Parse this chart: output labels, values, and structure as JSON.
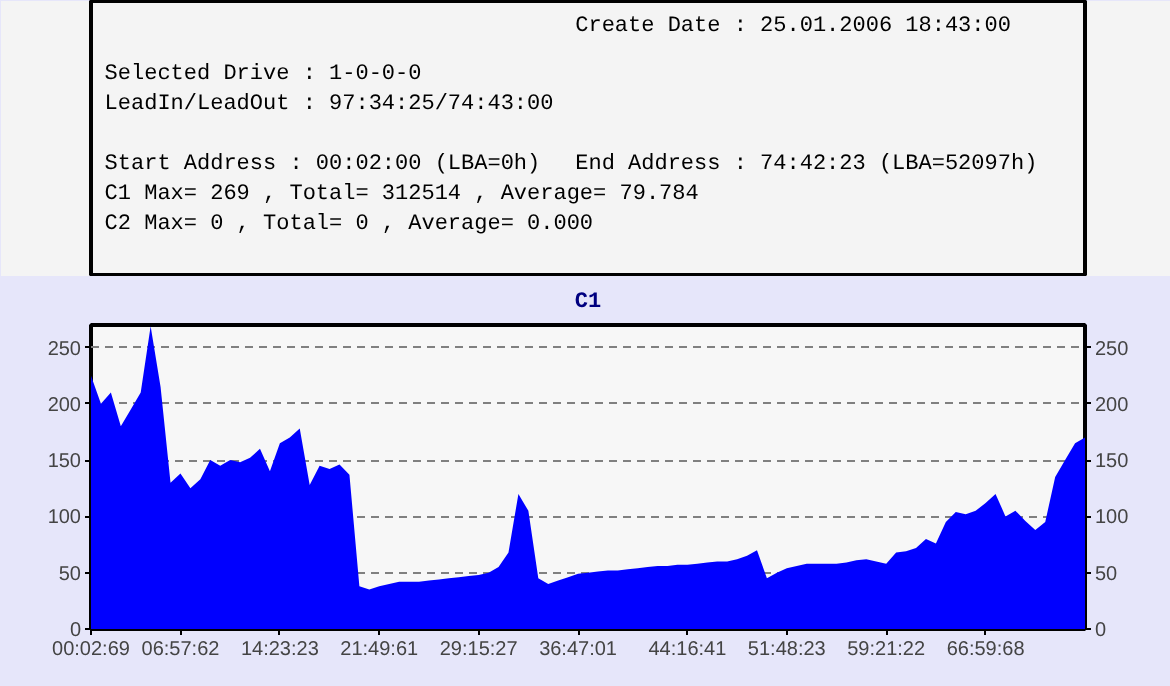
{
  "chart_data": {
    "type": "area",
    "title": "C1",
    "annotations": [
      "Create Date    : 25.01.2006 18:43:00",
      "Selected Drive : 1-0-0-0",
      "LeadIn/LeadOut : 97:34:25/74:43:00",
      "Start Address  : 00:02:00 (LBA=0h)",
      "End Address    : 74:42:23 (LBA=52097h)",
      "C1 Max= 269 , Total= 312514 , Average= 79.784",
      "C2 Max= 0 , Total= 0 , Average= 0.000"
    ],
    "categories": [
      "00:02:69",
      null,
      null,
      null,
      null,
      null,
      null,
      null,
      null,
      "06:57:62",
      null,
      null,
      null,
      null,
      null,
      null,
      null,
      null,
      null,
      "14:23:23",
      null,
      null,
      null,
      null,
      null,
      null,
      null,
      null,
      null,
      "21:49:61",
      null,
      null,
      null,
      null,
      null,
      null,
      null,
      null,
      null,
      "29:15:27",
      null,
      null,
      null,
      null,
      null,
      null,
      null,
      null,
      null,
      "36:47:01",
      null,
      null,
      null,
      null,
      null,
      null,
      null,
      null,
      null,
      null,
      "44:16:41",
      null,
      null,
      null,
      null,
      null,
      null,
      null,
      null,
      null,
      "51:48:23",
      null,
      null,
      null,
      null,
      null,
      null,
      null,
      null,
      null,
      "59:21:22",
      null,
      null,
      null,
      null,
      null,
      null,
      null,
      null,
      null,
      "66:59:68",
      null,
      null,
      null,
      null,
      null,
      null,
      null,
      null,
      null,
      null
    ],
    "series": [
      {
        "color": "#0000ff",
        "values": [
          225,
          200,
          210,
          180,
          195,
          210,
          269,
          215,
          130,
          138,
          125,
          133,
          150,
          145,
          150,
          148,
          152,
          160,
          140,
          165,
          170,
          178,
          128,
          145,
          142,
          146,
          137,
          38,
          35,
          38,
          40,
          42,
          42,
          42,
          43,
          44,
          45,
          46,
          47,
          48,
          50,
          55,
          68,
          120,
          105,
          45,
          40,
          43,
          46,
          49,
          50,
          51,
          52,
          52,
          53,
          54,
          55,
          56,
          56,
          57,
          57,
          58,
          59,
          60,
          60,
          62,
          65,
          70,
          45,
          50,
          54,
          56,
          58,
          58,
          58,
          58,
          59,
          61,
          62,
          60,
          58,
          68,
          69,
          72,
          80,
          76,
          95,
          104,
          102,
          105,
          112,
          120,
          100,
          105,
          96,
          88,
          95,
          135,
          150,
          165,
          170
        ]
      }
    ],
    "ylim": [
      0,
      270
    ],
    "yticks": [
      0,
      50,
      100,
      150,
      200,
      250
    ],
    "y2lim": [
      0,
      270
    ],
    "y2ticks": [
      0,
      50,
      100,
      150,
      200,
      250
    ],
    "grid": "y"
  }
}
